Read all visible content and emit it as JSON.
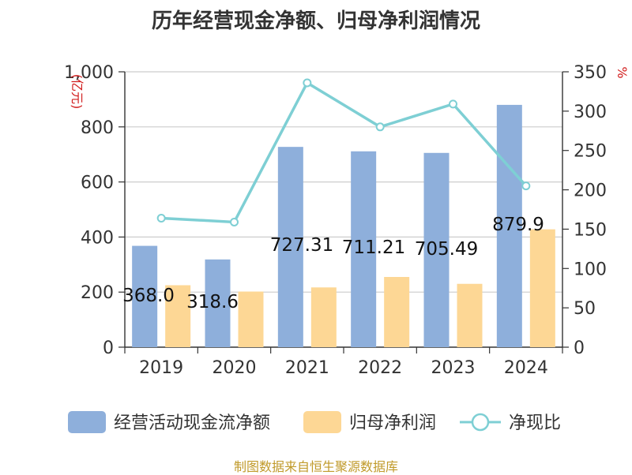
{
  "title": "历年经营现金净额、归母净利润情况",
  "source_note": "制图数据来自恒生聚源数据库",
  "colors": {
    "cash": "#8eafdb",
    "profit": "#fdd795",
    "ratio": "#7ecfd4"
  },
  "chart_data": {
    "type": "bar",
    "title": "历年经营现金净额、归母净利润情况",
    "categories": [
      "2019",
      "2020",
      "2021",
      "2022",
      "2023",
      "2024"
    ],
    "left_axis": {
      "unit": "亿元",
      "ylim": [
        0,
        1000
      ],
      "ticks": [
        "0",
        "200",
        "400",
        "600",
        "800",
        "1,000"
      ]
    },
    "right_axis": {
      "unit": "%",
      "ylim": [
        0,
        350
      ],
      "ticks": [
        "0",
        "50",
        "100",
        "150",
        "200",
        "250",
        "300",
        "350"
      ]
    },
    "series": [
      {
        "name": "经营活动现金流净额",
        "type": "bar",
        "axis": "left",
        "values": [
          368.0,
          318.6,
          727.31,
          711.21,
          705.49,
          879.9
        ],
        "labels": [
          "368.0",
          "318.6",
          "727.31",
          "711.21",
          "705.49",
          "879.9"
        ]
      },
      {
        "name": "归母净利润",
        "type": "bar",
        "axis": "left",
        "values": [
          225,
          202,
          217,
          255,
          230,
          428
        ]
      },
      {
        "name": "净现比",
        "type": "line",
        "axis": "right",
        "values": [
          164,
          159,
          336,
          280,
          309,
          205
        ]
      }
    ],
    "grid": true,
    "legend": "bottom"
  }
}
